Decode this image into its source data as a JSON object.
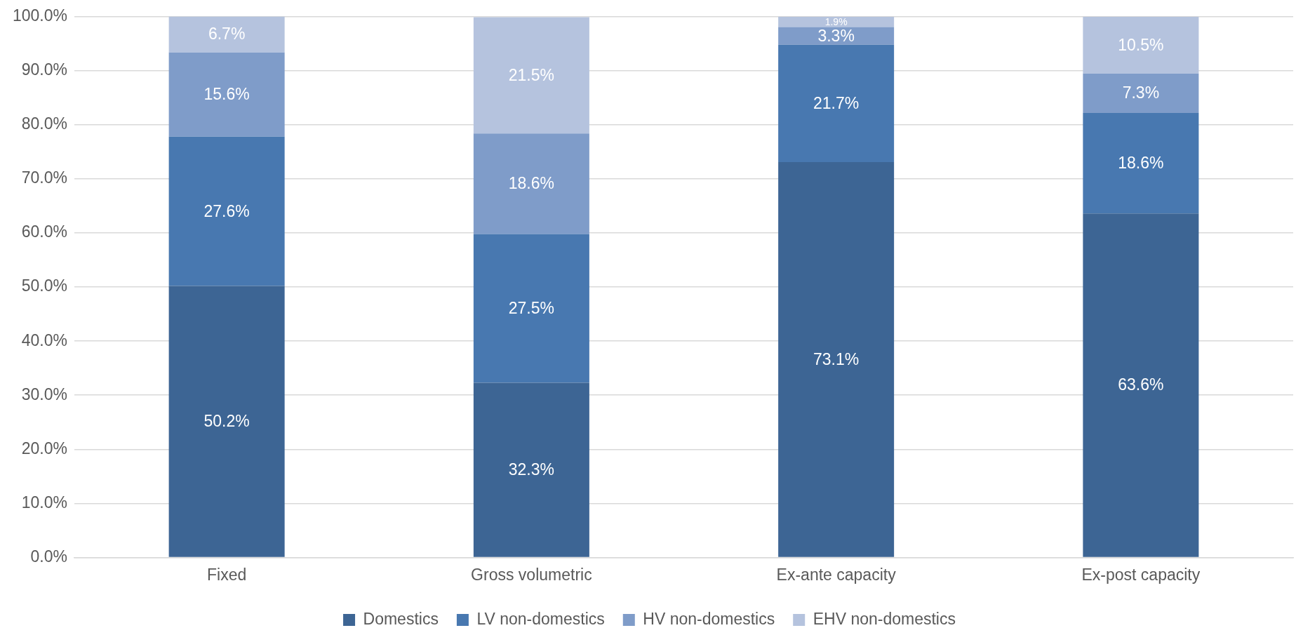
{
  "chart_data": {
    "type": "bar",
    "stacked": true,
    "categories": [
      "Fixed",
      "Gross volumetric",
      "Ex-ante capacity",
      "Ex-post capacity"
    ],
    "series": [
      {
        "name": "Domestics",
        "color": "#3d6594",
        "values": [
          50.2,
          32.3,
          73.1,
          63.6
        ],
        "value_labels": [
          "50.2%",
          "32.3%",
          "73.1%",
          "63.6%"
        ]
      },
      {
        "name": "LV non-domestics",
        "color": "#4878b0",
        "values": [
          27.6,
          27.5,
          21.7,
          18.6
        ],
        "value_labels": [
          "27.6%",
          "27.5%",
          "21.7%",
          "18.6%"
        ]
      },
      {
        "name": "HV non-domestics",
        "color": "#7f9cc9",
        "values": [
          15.6,
          18.6,
          3.3,
          7.3
        ],
        "value_labels": [
          "15.6%",
          "18.6%",
          "3.3%",
          "7.3%"
        ]
      },
      {
        "name": "EHV non-domestics",
        "color": "#b5c3de",
        "values": [
          6.7,
          21.5,
          1.9,
          10.5
        ],
        "value_labels": [
          "6.7%",
          "21.5%",
          "1.9%",
          "10.5%"
        ]
      }
    ],
    "ylim": [
      0,
      100
    ],
    "yticks": [
      {
        "value": 0,
        "label": "0.0%"
      },
      {
        "value": 10,
        "label": "10.0%"
      },
      {
        "value": 20,
        "label": "20.0%"
      },
      {
        "value": 30,
        "label": "30.0%"
      },
      {
        "value": 40,
        "label": "40.0%"
      },
      {
        "value": 50,
        "label": "50.0%"
      },
      {
        "value": 60,
        "label": "60.0%"
      },
      {
        "value": 70,
        "label": "70.0%"
      },
      {
        "value": 80,
        "label": "80.0%"
      },
      {
        "value": 90,
        "label": "90.0%"
      },
      {
        "value": 100,
        "label": "100.0%"
      }
    ],
    "grid": "y",
    "legend": "bottom"
  }
}
